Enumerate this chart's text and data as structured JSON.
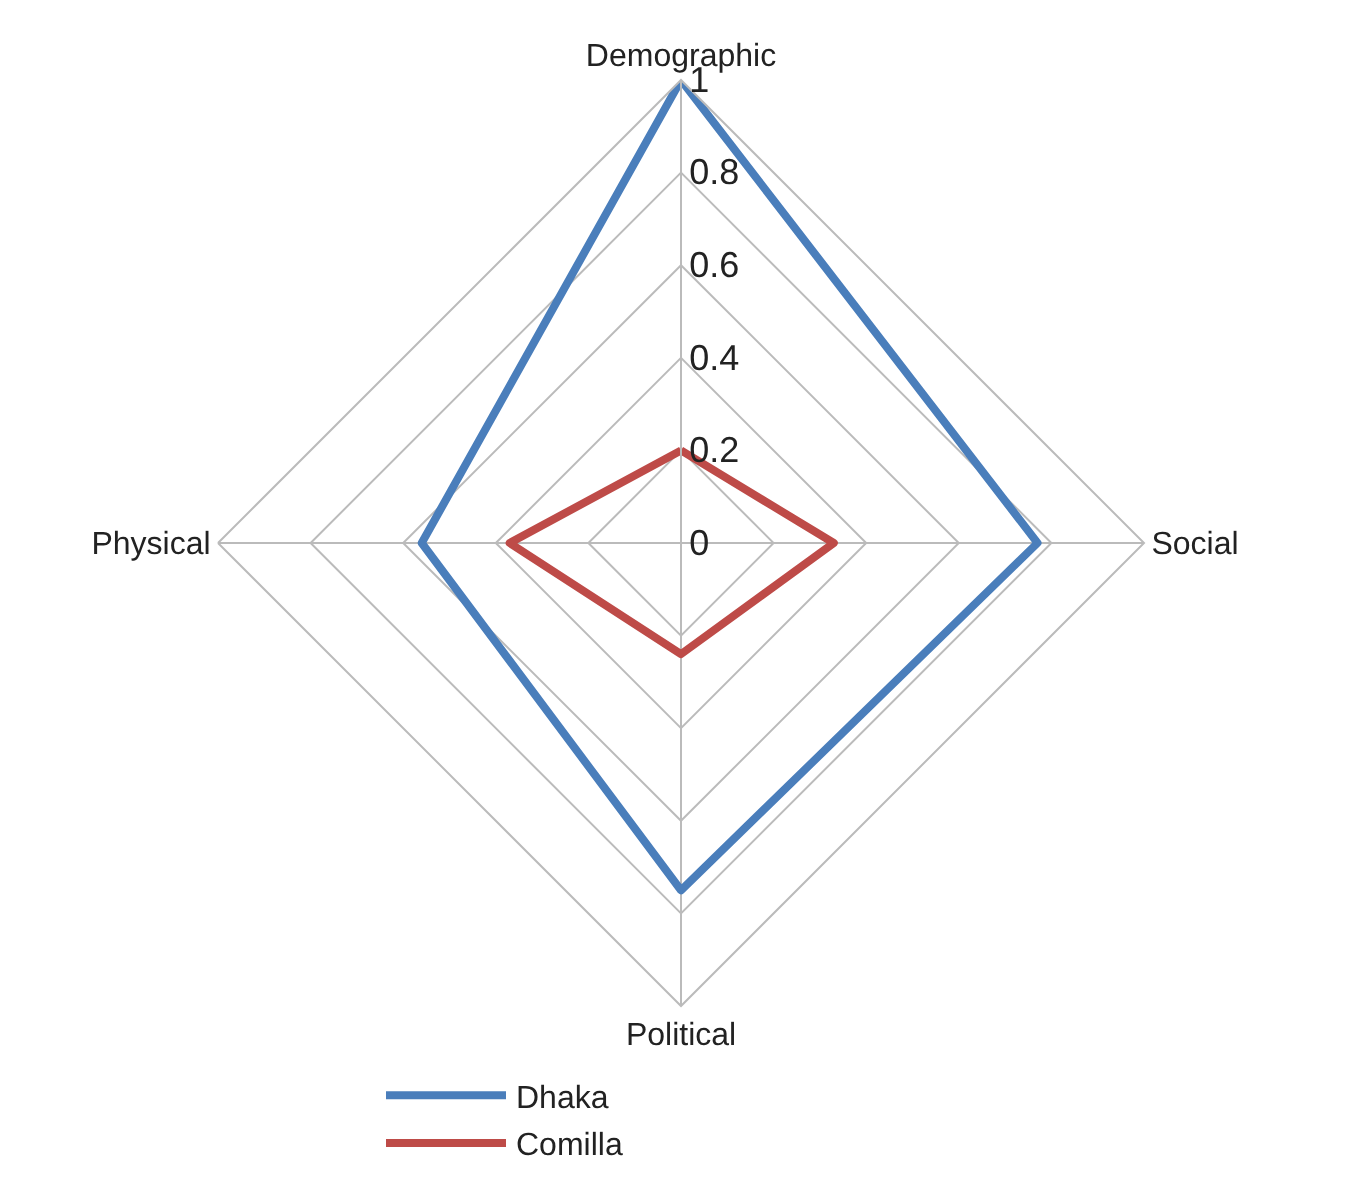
{
  "chart_data": {
    "type": "radar",
    "categories": [
      "Demographic",
      "Social",
      "Political",
      "Physical"
    ],
    "series": [
      {
        "name": "Dhaka",
        "color": "#4a7ebb",
        "values": [
          1,
          0.77,
          0.75,
          0.56
        ]
      },
      {
        "name": "Comilla",
        "color": "#be4b48",
        "values": [
          0.2,
          0.33,
          0.24,
          0.37
        ]
      }
    ],
    "ylim": [
      0,
      1
    ],
    "yticks": [
      0,
      0.2,
      0.4,
      0.6,
      0.8,
      1
    ],
    "grid": true,
    "legend": "bottom",
    "marker": "none",
    "line_style": "solid"
  }
}
